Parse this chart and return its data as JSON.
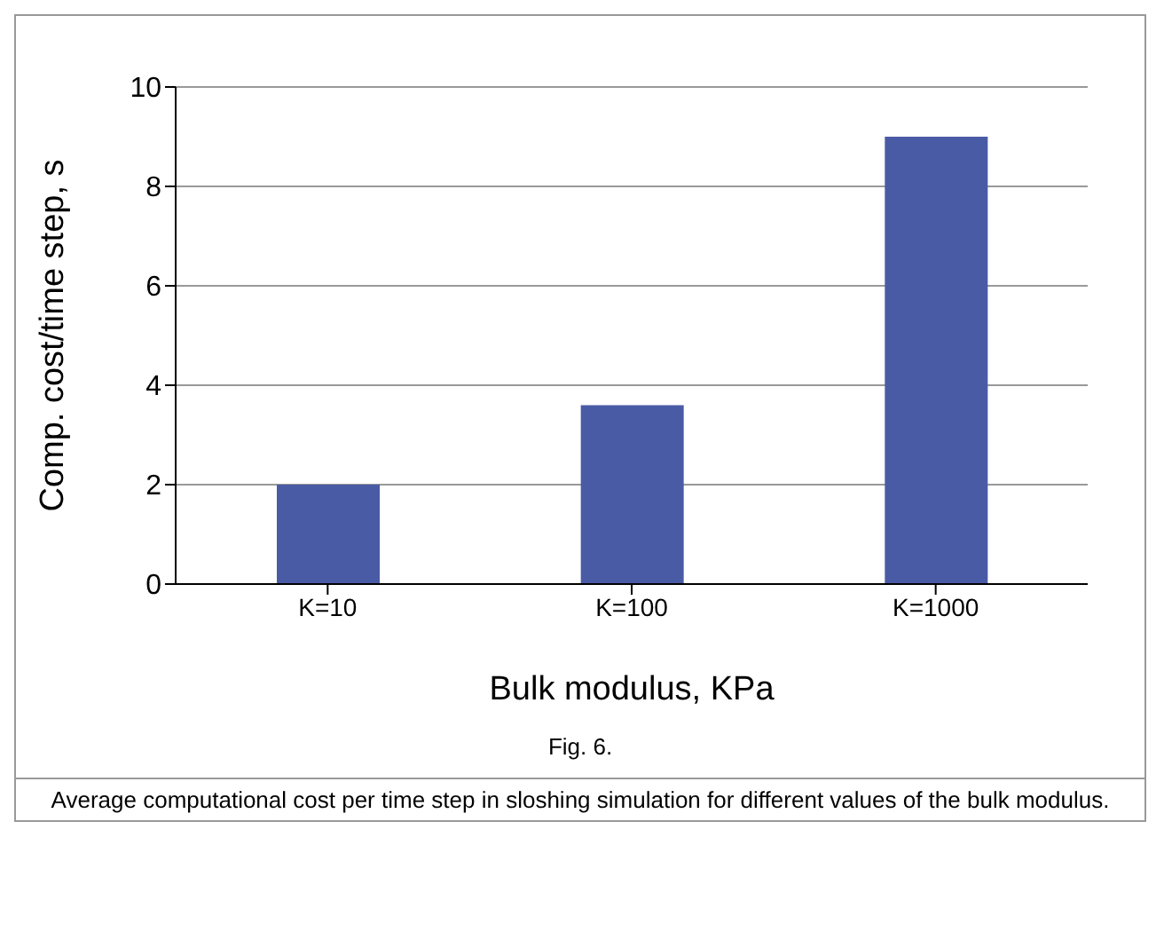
{
  "chart_data": {
    "type": "bar",
    "categories": [
      "K=10",
      "K=100",
      "K=1000"
    ],
    "values": [
      2,
      3.6,
      9
    ],
    "color": "#4a5ba6",
    "xlabel": "Bulk modulus, KPa",
    "ylabel": "Comp. cost/time step, s",
    "ylim": [
      0,
      10
    ],
    "yticks": [
      0,
      2,
      4,
      6,
      8,
      10
    ],
    "grid": "y",
    "annotations": [
      "Fig. 6.",
      "Average computational cost per time step in sloshing simulation for different values of the bulk modulus."
    ]
  }
}
